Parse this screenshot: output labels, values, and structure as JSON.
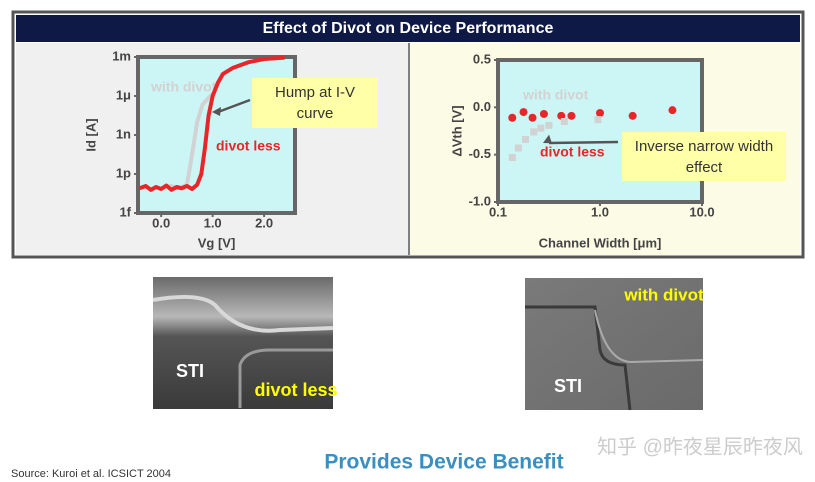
{
  "header": {
    "title": "Effect of Divot on Device Performance"
  },
  "chart_data": [
    {
      "type": "line",
      "xlabel": "Vg [V]",
      "ylabel": "Id [A]",
      "log_y": true,
      "xlim": [
        -0.45,
        2.6
      ],
      "xticks": [
        {
          "value": 0,
          "label": "0.0"
        },
        {
          "value": 1,
          "label": "1.0"
        },
        {
          "value": 2,
          "label": "2.0"
        }
      ],
      "ylim": [
        1e-15,
        0.001
      ],
      "yticks": [
        {
          "value": 0.001,
          "label": "1m"
        },
        {
          "value": 1e-06,
          "label": "1μ"
        },
        {
          "value": 1e-09,
          "label": "1n"
        },
        {
          "value": 1e-12,
          "label": "1p"
        },
        {
          "value": 1e-15,
          "label": "1f"
        }
      ],
      "series": [
        {
          "name": "with divot",
          "color": "#d2d2d2",
          "x": [
            0.1,
            0.2,
            0.3,
            0.4,
            0.5,
            0.55,
            0.62,
            0.7,
            0.8,
            0.9,
            1.0
          ],
          "values": [
            1e-13,
            1.2e-13,
            8e-14,
            1e-13,
            1.5e-13,
            2e-12,
            1e-10,
            1e-08,
            2e-07,
            6e-07,
            1.5e-06
          ]
        },
        {
          "name": "divot less",
          "color": "#e8262a",
          "x": [
            -0.42,
            -0.3,
            -0.2,
            -0.1,
            0,
            0.1,
            0.2,
            0.3,
            0.4,
            0.5,
            0.6,
            0.7,
            0.78,
            0.85,
            0.92,
            1.0,
            1.1,
            1.2,
            1.4,
            1.7,
            2.0,
            2.4
          ],
          "values": [
            8e-14,
            1.2e-13,
            6e-14,
            1e-13,
            7e-14,
            1.3e-13,
            6e-14,
            1e-13,
            8e-14,
            1.2e-13,
            7e-14,
            1.5e-13,
            1e-12,
            1e-10,
            3e-08,
            1e-06,
            1e-05,
            5e-05,
            0.00015,
            0.0004,
            0.0007,
            0.0009
          ]
        }
      ],
      "annotations": [
        "Hump at I-V curve"
      ]
    },
    {
      "type": "scatter",
      "xlabel": "Channel Width [μm]",
      "ylabel": "ΔVth [V]",
      "log_x": true,
      "xlim": [
        0.1,
        10
      ],
      "xticks": [
        0.1,
        {
          "value": 1,
          "label": "1.0"
        },
        {
          "value": 10,
          "label": "10.0"
        }
      ],
      "ylim": [
        -1.0,
        0.5
      ],
      "yticks": [
        0.5,
        {
          "value": 0,
          "label": "0.0"
        },
        -0.5,
        {
          "value": -1,
          "label": "-1.0"
        }
      ],
      "series": [
        {
          "name": "divot less",
          "color": "#e8262a",
          "marker": "circle",
          "x": [
            0.138,
            0.178,
            0.218,
            0.282,
            0.417,
            0.525,
            1.0,
            2.09,
            5.13
          ],
          "values": [
            -0.11,
            -0.05,
            -0.11,
            -0.07,
            -0.09,
            -0.09,
            -0.06,
            -0.09,
            -0.03
          ]
        },
        {
          "name": "with divot",
          "color": "#d2d2d2",
          "marker": "square",
          "x": [
            0.138,
            0.158,
            0.186,
            0.224,
            0.263,
            0.316,
            0.447,
            0.955
          ],
          "values": [
            -0.53,
            -0.43,
            -0.34,
            -0.26,
            -0.22,
            -0.19,
            -0.15,
            -0.13
          ]
        }
      ],
      "annotations": [
        "Inverse narrow width effect"
      ]
    }
  ],
  "images": [
    {
      "labels": [
        "STI",
        "divot less"
      ]
    },
    {
      "labels": [
        "STI",
        "with divot"
      ]
    }
  ],
  "footer": {
    "headline": "Provides Device Benefit",
    "source": "Source: Kuroi et al. ICSICT 2004",
    "watermark": "知乎 @昨夜星辰昨夜风"
  }
}
